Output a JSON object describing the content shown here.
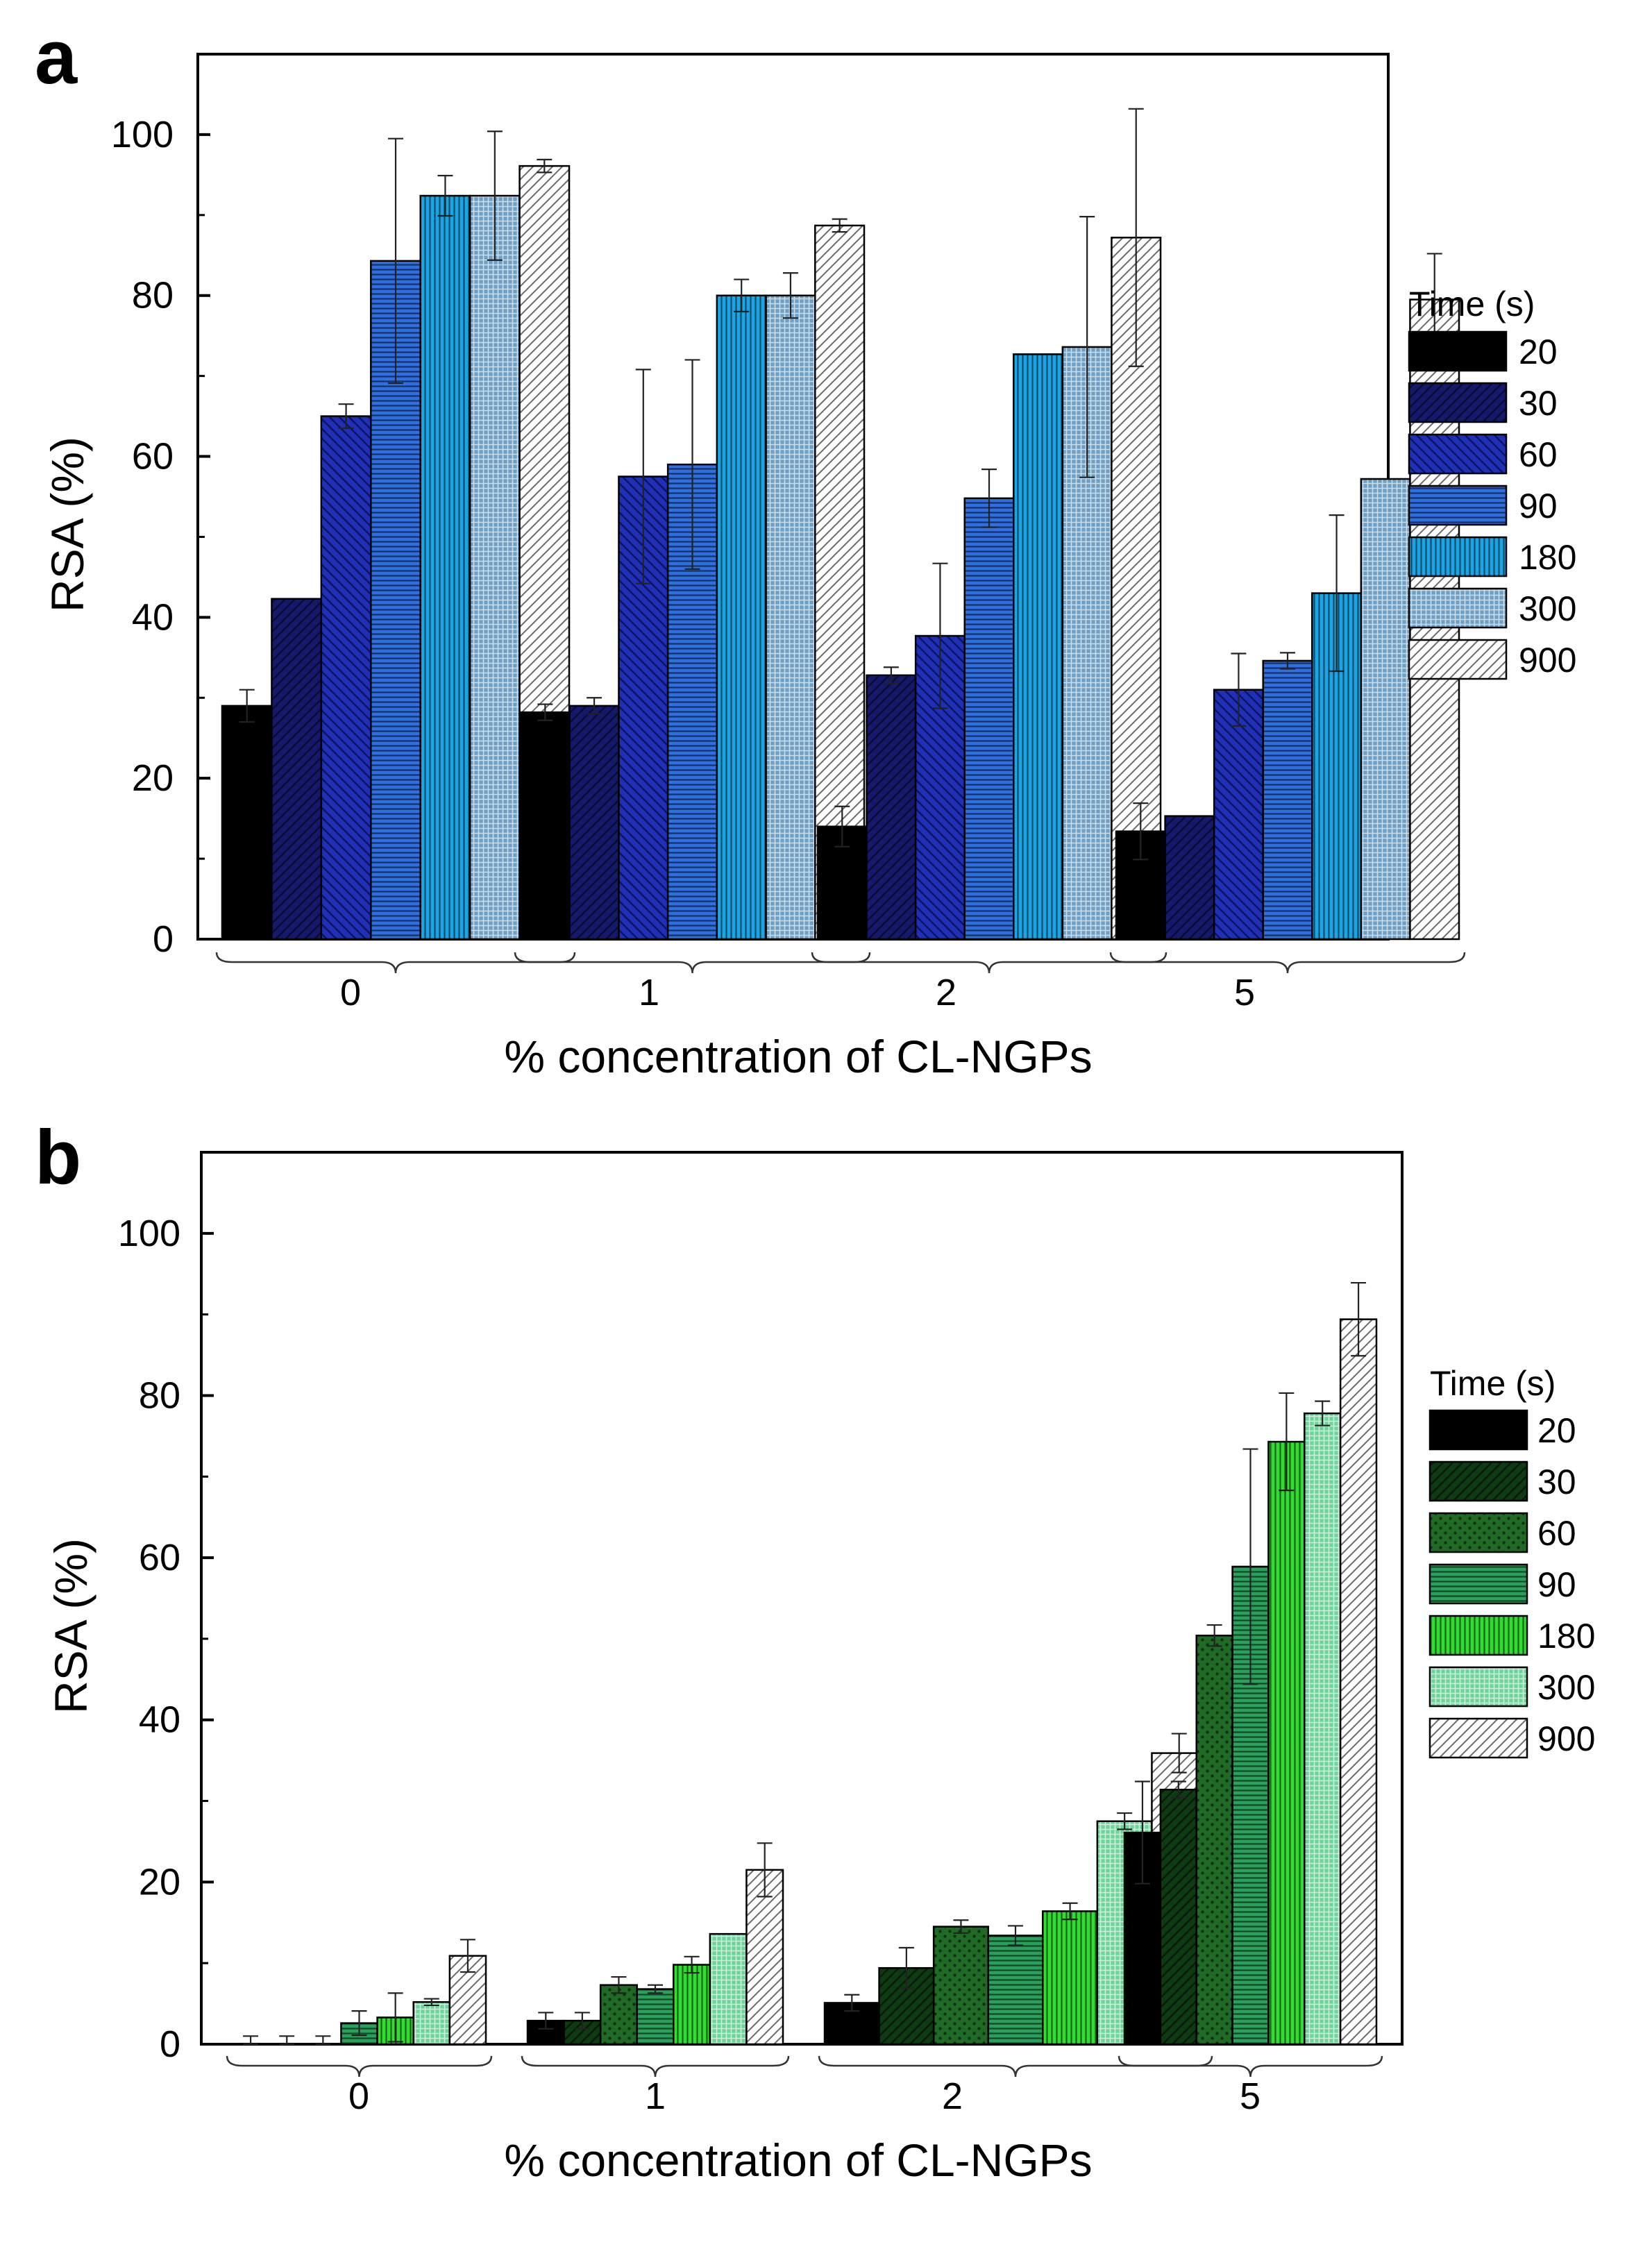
{
  "chart_data": [
    {
      "panel": "a",
      "type": "bar",
      "categories": [
        "0",
        "1",
        "2",
        "5"
      ],
      "xlabel": "% concentration of CL-NGPs",
      "ylabel": "RSA (%)",
      "ylim": [
        0,
        110
      ],
      "yticks": [
        0,
        20,
        40,
        60,
        80,
        100
      ],
      "legend_title": "Time (s)",
      "legend_position": "right",
      "series": [
        {
          "name": "20",
          "color": "#000000",
          "pattern": "solid",
          "values": [
            29.0,
            28.2,
            14.0,
            13.4
          ],
          "errors": [
            2.0,
            1.0,
            2.5,
            3.5
          ]
        },
        {
          "name": "30",
          "color": "#14196e",
          "pattern": "diag-right",
          "values": [
            42.3,
            29.0,
            32.8,
            15.3
          ],
          "errors": [
            0.0,
            1.0,
            1.0,
            0.0
          ]
        },
        {
          "name": "60",
          "color": "#1f2fb8",
          "pattern": "diag-left",
          "values": [
            65.0,
            57.5,
            37.7,
            31.0
          ],
          "errors": [
            1.5,
            13.3,
            9.0,
            4.5
          ]
        },
        {
          "name": "90",
          "color": "#2f6fe0",
          "pattern": "horizontal",
          "values": [
            84.3,
            59.0,
            54.8,
            34.6
          ],
          "errors": [
            15.2,
            13.0,
            3.6,
            1.0
          ]
        },
        {
          "name": "180",
          "color": "#1aa6e6",
          "pattern": "vertical",
          "values": [
            92.4,
            80.0,
            72.7,
            43.0
          ],
          "errors": [
            2.5,
            2.0,
            0.0,
            9.7
          ]
        },
        {
          "name": "300",
          "color": "#6e9fc4",
          "pattern": "grid",
          "values": [
            92.4,
            80.0,
            73.6,
            57.2
          ],
          "errors": [
            8.0,
            2.8,
            16.2,
            0.0
          ]
        },
        {
          "name": "900",
          "color": "#d4d4d4",
          "pattern": "diag-light",
          "values": [
            96.1,
            88.7,
            87.2,
            79.5
          ],
          "errors": [
            0.8,
            0.8,
            16.0,
            5.7
          ]
        }
      ]
    },
    {
      "panel": "b",
      "type": "bar",
      "categories": [
        "0",
        "1",
        "2",
        "5"
      ],
      "xlabel": "% concentration of CL-NGPs",
      "ylabel": "RSA (%)",
      "ylim": [
        0,
        110
      ],
      "yticks": [
        0,
        20,
        40,
        60,
        80,
        100
      ],
      "legend_title": "Time (s)",
      "legend_position": "right",
      "series": [
        {
          "name": "20",
          "color": "#000000",
          "pattern": "solid",
          "values": [
            0.0,
            2.9,
            5.1,
            26.1
          ],
          "errors": [
            1.0,
            1.0,
            1.0,
            6.3
          ]
        },
        {
          "name": "30",
          "color": "#0d3b12",
          "pattern": "diag-right",
          "values": [
            0.0,
            2.9,
            9.4,
            31.4
          ],
          "errors": [
            1.0,
            1.0,
            2.5,
            1.0
          ]
        },
        {
          "name": "60",
          "color": "#1f6b25",
          "pattern": "dots",
          "values": [
            0.0,
            7.3,
            14.5,
            50.4
          ],
          "errors": [
            1.0,
            1.0,
            0.8,
            1.3
          ]
        },
        {
          "name": "90",
          "color": "#2aa05a",
          "pattern": "horizontal",
          "values": [
            2.6,
            6.8,
            13.4,
            58.9
          ],
          "errors": [
            1.5,
            0.5,
            1.2,
            14.5
          ]
        },
        {
          "name": "180",
          "color": "#32dc32",
          "pattern": "vertical",
          "values": [
            3.3,
            9.8,
            16.4,
            74.3
          ],
          "errors": [
            3.0,
            1.0,
            1.0,
            6.0
          ]
        },
        {
          "name": "300",
          "color": "#6fd49a",
          "pattern": "grid",
          "values": [
            5.2,
            13.6,
            27.5,
            77.8
          ],
          "errors": [
            0.4,
            0.0,
            1.0,
            1.5
          ]
        },
        {
          "name": "900",
          "color": "#d4d4d4",
          "pattern": "diag-light",
          "values": [
            10.9,
            21.5,
            35.9,
            89.4
          ],
          "errors": [
            2.0,
            3.3,
            2.4,
            4.5
          ]
        }
      ]
    }
  ]
}
